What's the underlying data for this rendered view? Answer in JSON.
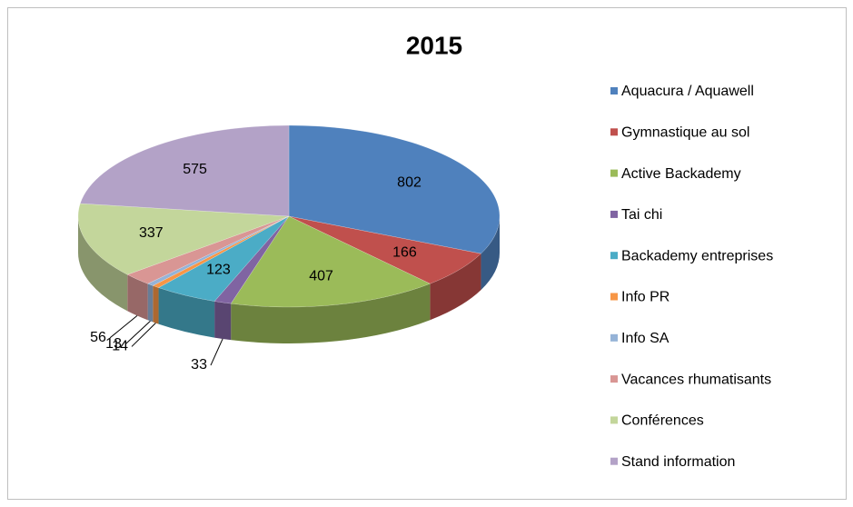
{
  "chart_data": {
    "type": "pie",
    "title": "2015",
    "categories": [
      "Aquacura / Aquawell",
      "Gymnastique au sol",
      "Active Backademy",
      "Tai chi",
      "Backademy entreprises",
      "Info PR",
      "Info SA",
      "Vacances rhumatisants",
      "Conférences",
      "Stand information"
    ],
    "values": [
      802,
      166,
      407,
      33,
      123,
      14,
      13,
      56,
      337,
      575
    ],
    "colors": [
      "#4f81bd",
      "#c0504d",
      "#9bbb59",
      "#8064a2",
      "#4bacc6",
      "#f79646",
      "#95b3d7",
      "#d99694",
      "#c3d69b",
      "#b3a2c7"
    ],
    "legend": "right"
  }
}
